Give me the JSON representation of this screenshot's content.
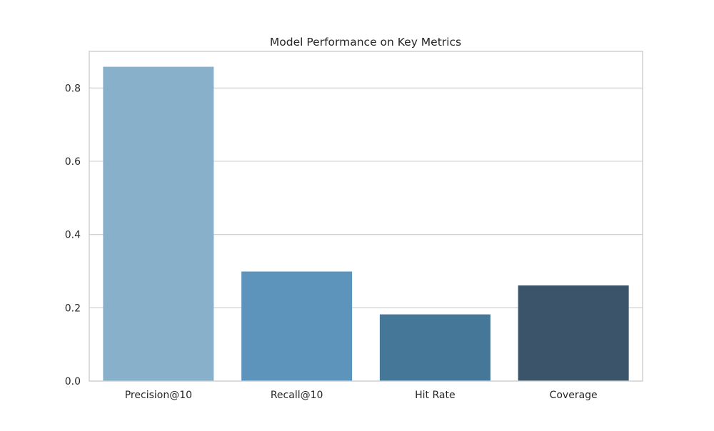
{
  "chart_data": {
    "type": "bar",
    "title": "Model Performance on Key Metrics",
    "xlabel": "",
    "ylabel": "",
    "categories": [
      "Precision@10",
      "Recall@10",
      "Hit Rate",
      "Coverage"
    ],
    "values": [
      0.858,
      0.299,
      0.182,
      0.261
    ],
    "colors": [
      "#89b0cb",
      "#5c94bc",
      "#457898",
      "#3c5469"
    ],
    "ylim": [
      0,
      0.9
    ],
    "yticks": [
      0.0,
      0.2,
      0.4,
      0.6,
      0.8
    ],
    "ytick_labels": [
      "0.0",
      "0.2",
      "0.4",
      "0.6",
      "0.8"
    ],
    "grid": "horizontal",
    "legend": "none"
  }
}
